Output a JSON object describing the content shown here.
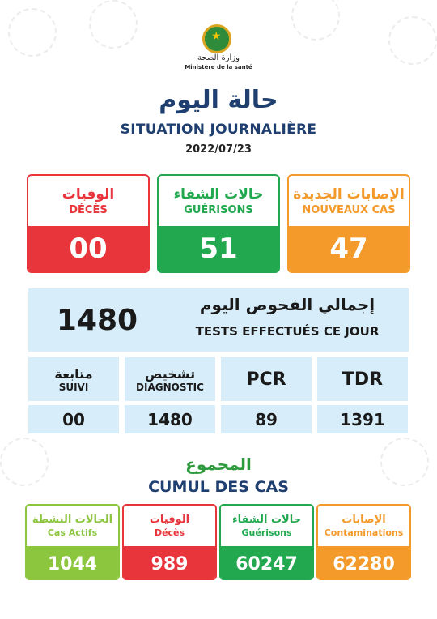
{
  "colors": {
    "red": "#e8353b",
    "green": "#22a94f",
    "orange": "#f39a2b",
    "lime": "#8cc63f",
    "navy": "#1f3f70",
    "light_blue": "#d7eefa"
  },
  "header": {
    "logo_icon": "ministry-emblem",
    "ministry_ar": "وزارة الصحة",
    "ministry_fr": "Ministère de la santé",
    "title_ar": "حالة اليوم",
    "title_fr": "SITUATION JOURNALIÈRE",
    "date": "2022/07/23"
  },
  "daily": {
    "deces": {
      "label_ar": "الوفيات",
      "label_fr": "DÉCÈS",
      "value": "00"
    },
    "guerisons": {
      "label_ar": "حالات الشفاء",
      "label_fr": "GUÉRISONS",
      "value": "51"
    },
    "nouveaux": {
      "label_ar": "الإصابات الجديدة",
      "label_fr": "NOUVEAUX CAS",
      "value": "47"
    }
  },
  "tests": {
    "total": "1480",
    "label_ar": "إجمالي الفحوص اليوم",
    "label_fr": "TESTS EFFECTUÉS CE JOUR",
    "suivi": {
      "label_ar": "متابعة",
      "label_fr": "SUIVI",
      "value": "00"
    },
    "diagnostic": {
      "label_ar": "تشخيص",
      "label_fr": "DIAGNOSTIC",
      "value": "1480"
    },
    "pcr": {
      "label": "PCR",
      "value": "89"
    },
    "tdr": {
      "label": "TDR",
      "value": "1391"
    }
  },
  "cumul": {
    "title_ar": "المجموع",
    "title_fr": "CUMUL DES CAS",
    "actifs": {
      "label_ar": "الحالات النشطة",
      "label_fr": "Cas Actifs",
      "value": "1044"
    },
    "deces": {
      "label_ar": "الوفيات",
      "label_fr": "Décès",
      "value": "989"
    },
    "guerisons": {
      "label_ar": "حالات الشفاء",
      "label_fr": "Guérisons",
      "value": "60247"
    },
    "contaminations": {
      "label_ar": "الإصابات",
      "label_fr": "Contaminations",
      "value": "62280"
    }
  }
}
